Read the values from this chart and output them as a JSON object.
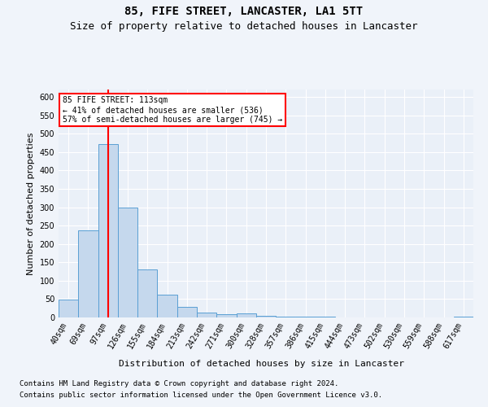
{
  "title": "85, FIFE STREET, LANCASTER, LA1 5TT",
  "subtitle": "Size of property relative to detached houses in Lancaster",
  "xlabel": "Distribution of detached houses by size in Lancaster",
  "ylabel": "Number of detached properties",
  "categories": [
    "40sqm",
    "69sqm",
    "97sqm",
    "126sqm",
    "155sqm",
    "184sqm",
    "213sqm",
    "242sqm",
    "271sqm",
    "300sqm",
    "328sqm",
    "357sqm",
    "386sqm",
    "415sqm",
    "444sqm",
    "473sqm",
    "502sqm",
    "530sqm",
    "559sqm",
    "588sqm",
    "617sqm"
  ],
  "values": [
    48,
    237,
    472,
    298,
    130,
    62,
    28,
    14,
    9,
    10,
    5,
    3,
    2,
    2,
    1,
    1,
    1,
    0,
    0,
    0,
    2
  ],
  "bar_color": "#c5d8ed",
  "bar_edge_color": "#5a9fd4",
  "red_line_x": 2.0,
  "annotation_text": "85 FIFE STREET: 113sqm\n← 41% of detached houses are smaller (536)\n57% of semi-detached houses are larger (745) →",
  "annotation_box_color": "white",
  "annotation_box_edge_color": "red",
  "red_line_color": "red",
  "ylim": [
    0,
    620
  ],
  "yticks": [
    0,
    50,
    100,
    150,
    200,
    250,
    300,
    350,
    400,
    450,
    500,
    550,
    600
  ],
  "footer_line1": "Contains HM Land Registry data © Crown copyright and database right 2024.",
  "footer_line2": "Contains public sector information licensed under the Open Government Licence v3.0.",
  "background_color": "#f0f4fa",
  "plot_bg_color": "#eaf0f8",
  "grid_color": "white",
  "title_fontsize": 10,
  "subtitle_fontsize": 9,
  "axis_label_fontsize": 8,
  "tick_fontsize": 7,
  "annot_fontsize": 7,
  "footer_fontsize": 6.5
}
